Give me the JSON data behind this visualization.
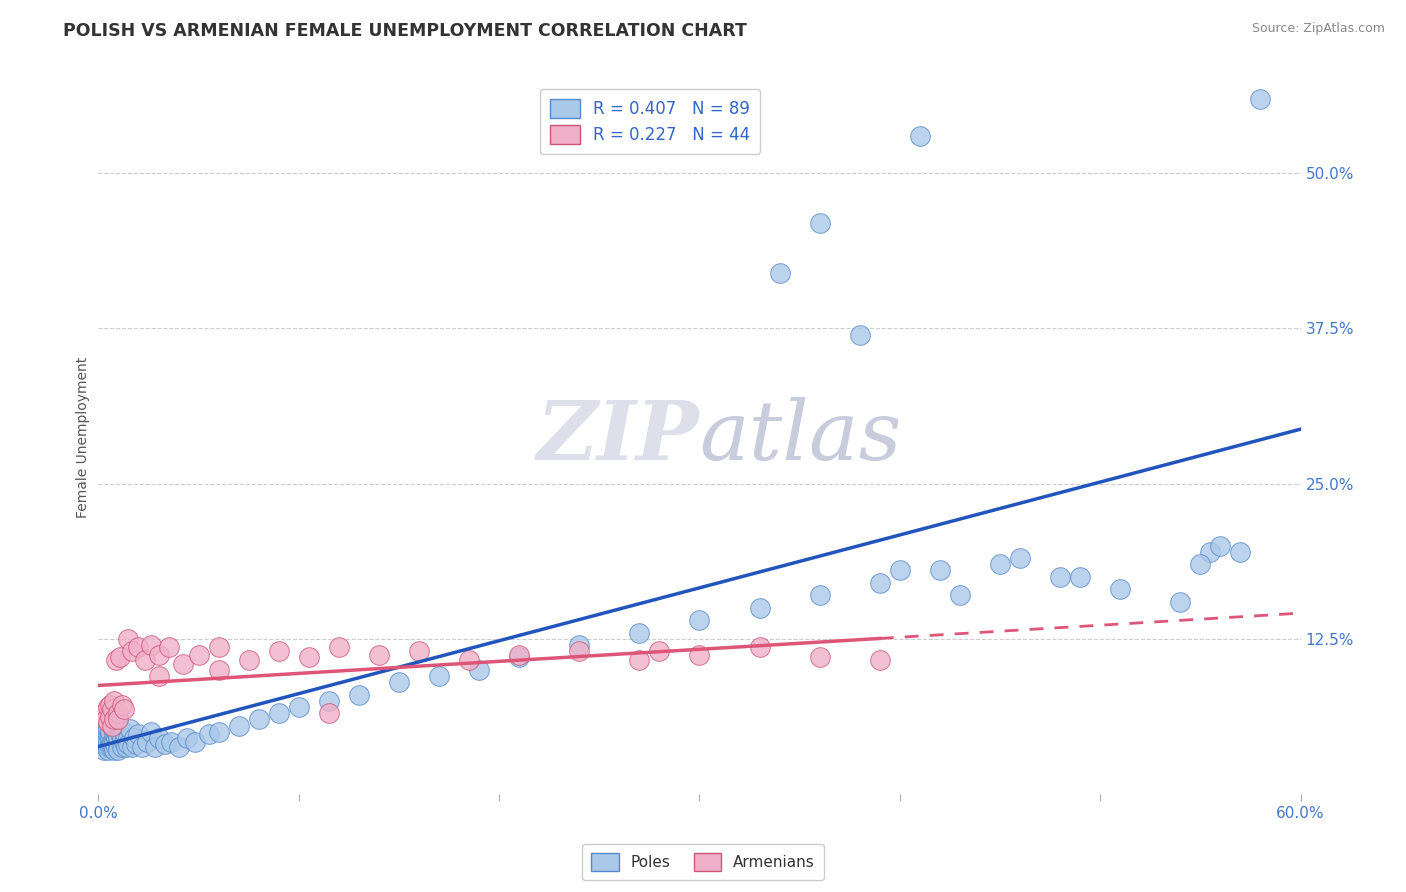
{
  "title": "POLISH VS ARMENIAN FEMALE UNEMPLOYMENT CORRELATION CHART",
  "source": "Source: ZipAtlas.com",
  "ylabel": "Female Unemployment",
  "xlim": [
    0.0,
    0.6
  ],
  "ylim": [
    0.0,
    0.575
  ],
  "xticks": [
    0.0,
    0.1,
    0.2,
    0.3,
    0.4,
    0.5,
    0.6
  ],
  "xticklabels": [
    "0.0%",
    "",
    "",
    "",
    "",
    "",
    "60.0%"
  ],
  "ytick_positions": [
    0.125,
    0.25,
    0.375,
    0.5
  ],
  "ytick_labels": [
    "12.5%",
    "25.0%",
    "37.5%",
    "50.0%"
  ],
  "grid_color": "#cccccc",
  "background_color": "#ffffff",
  "poles_color": "#aac8e8",
  "poles_edge_color": "#5588cc",
  "armenians_color": "#f0b0c8",
  "armenians_edge_color": "#cc5577",
  "trend_blue": "#2255bb",
  "trend_pink": "#dd5577",
  "poles_x": [
    0.002,
    0.003,
    0.003,
    0.004,
    0.004,
    0.004,
    0.005,
    0.005,
    0.005,
    0.005,
    0.005,
    0.006,
    0.006,
    0.006,
    0.006,
    0.007,
    0.007,
    0.007,
    0.007,
    0.008,
    0.008,
    0.008,
    0.008,
    0.009,
    0.009,
    0.009,
    0.01,
    0.01,
    0.01,
    0.011,
    0.011,
    0.012,
    0.012,
    0.013,
    0.013,
    0.014,
    0.015,
    0.015,
    0.016,
    0.017,
    0.018,
    0.019,
    0.02,
    0.022,
    0.024,
    0.026,
    0.028,
    0.03,
    0.033,
    0.036,
    0.04,
    0.044,
    0.048,
    0.055,
    0.06,
    0.07,
    0.08,
    0.09,
    0.1,
    0.115,
    0.13,
    0.15,
    0.17,
    0.19,
    0.21,
    0.24,
    0.27,
    0.3,
    0.33,
    0.36,
    0.39,
    0.42,
    0.45,
    0.48,
    0.51,
    0.54,
    0.555,
    0.56,
    0.4,
    0.43,
    0.34,
    0.36,
    0.41,
    0.46,
    0.49,
    0.38,
    0.55,
    0.57,
    0.58
  ],
  "poles_y": [
    0.04,
    0.035,
    0.045,
    0.038,
    0.042,
    0.05,
    0.038,
    0.042,
    0.035,
    0.048,
    0.052,
    0.04,
    0.038,
    0.045,
    0.05,
    0.042,
    0.038,
    0.055,
    0.04,
    0.042,
    0.048,
    0.035,
    0.052,
    0.045,
    0.038,
    0.05,
    0.04,
    0.045,
    0.035,
    0.048,
    0.052,
    0.038,
    0.045,
    0.042,
    0.05,
    0.038,
    0.045,
    0.04,
    0.052,
    0.038,
    0.045,
    0.04,
    0.048,
    0.038,
    0.042,
    0.05,
    0.038,
    0.045,
    0.04,
    0.042,
    0.038,
    0.045,
    0.042,
    0.048,
    0.05,
    0.055,
    0.06,
    0.065,
    0.07,
    0.075,
    0.08,
    0.09,
    0.095,
    0.1,
    0.11,
    0.12,
    0.13,
    0.14,
    0.15,
    0.16,
    0.17,
    0.18,
    0.185,
    0.175,
    0.165,
    0.155,
    0.195,
    0.2,
    0.18,
    0.16,
    0.42,
    0.46,
    0.53,
    0.19,
    0.175,
    0.37,
    0.185,
    0.195,
    0.56
  ],
  "armenians_x": [
    0.003,
    0.004,
    0.005,
    0.005,
    0.006,
    0.006,
    0.007,
    0.007,
    0.008,
    0.008,
    0.009,
    0.01,
    0.01,
    0.011,
    0.012,
    0.013,
    0.015,
    0.017,
    0.02,
    0.023,
    0.026,
    0.03,
    0.035,
    0.042,
    0.05,
    0.06,
    0.075,
    0.09,
    0.105,
    0.12,
    0.14,
    0.16,
    0.185,
    0.21,
    0.24,
    0.27,
    0.3,
    0.33,
    0.36,
    0.39,
    0.03,
    0.06,
    0.115,
    0.28
  ],
  "armenians_y": [
    0.065,
    0.06,
    0.07,
    0.058,
    0.072,
    0.062,
    0.068,
    0.055,
    0.075,
    0.06,
    0.108,
    0.065,
    0.06,
    0.11,
    0.072,
    0.068,
    0.125,
    0.115,
    0.118,
    0.108,
    0.12,
    0.112,
    0.118,
    0.105,
    0.112,
    0.118,
    0.108,
    0.115,
    0.11,
    0.118,
    0.112,
    0.115,
    0.108,
    0.112,
    0.115,
    0.108,
    0.112,
    0.118,
    0.11,
    0.108,
    0.095,
    0.1,
    0.065,
    0.115
  ]
}
